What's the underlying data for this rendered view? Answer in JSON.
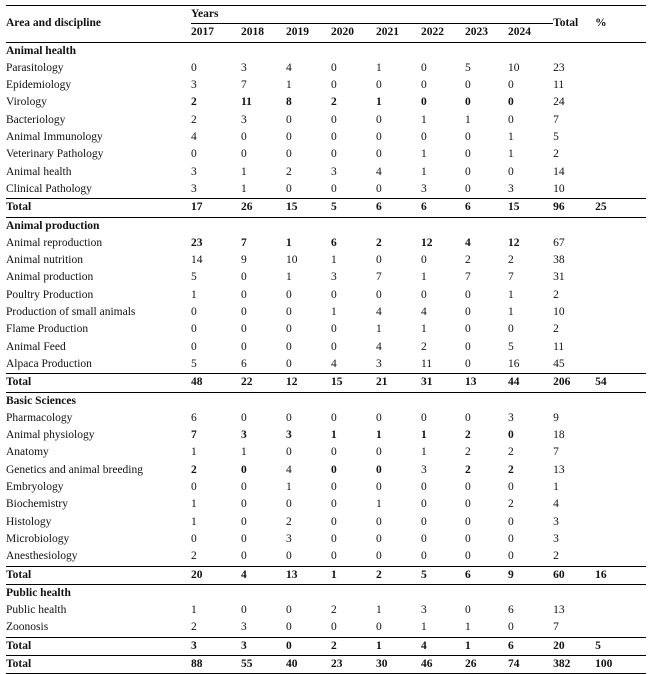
{
  "header": {
    "area_label": "Area and discipline",
    "years_label": "Years",
    "years": [
      "2017",
      "2018",
      "2019",
      "2020",
      "2021",
      "2022",
      "2023",
      "2024"
    ],
    "total_label": "Total",
    "percent_label": "%"
  },
  "sections": [
    {
      "title": "Animal health",
      "rows": [
        {
          "name": "Parasitology",
          "values": [
            0,
            3,
            4,
            0,
            1,
            0,
            5,
            10
          ],
          "total": 23,
          "bold_years": []
        },
        {
          "name": "Epidemiology",
          "values": [
            3,
            7,
            1,
            0,
            0,
            0,
            0,
            0
          ],
          "total": 11,
          "bold_years": []
        },
        {
          "name": "Virology",
          "values": [
            2,
            11,
            8,
            2,
            1,
            0,
            0,
            0
          ],
          "total": 24,
          "bold_years": [
            0,
            1,
            2,
            3,
            4,
            5,
            6,
            7
          ]
        },
        {
          "name": "Bacteriology",
          "values": [
            2,
            3,
            0,
            0,
            0,
            1,
            1,
            0
          ],
          "total": 7,
          "bold_years": []
        },
        {
          "name": "Animal Immunology",
          "values": [
            4,
            0,
            0,
            0,
            0,
            0,
            0,
            1
          ],
          "total": 5,
          "bold_years": []
        },
        {
          "name": "Veterinary Pathology",
          "values": [
            0,
            0,
            0,
            0,
            0,
            1,
            0,
            1
          ],
          "total": 2,
          "bold_years": []
        },
        {
          "name": "Animal health",
          "values": [
            3,
            1,
            2,
            3,
            4,
            1,
            0,
            0
          ],
          "total": 14,
          "bold_years": []
        },
        {
          "name": "Clinical Pathology",
          "values": [
            3,
            1,
            0,
            0,
            0,
            3,
            0,
            3
          ],
          "total": 10,
          "bold_years": []
        }
      ],
      "total": {
        "label": "Total",
        "values": [
          17,
          26,
          15,
          5,
          6,
          6,
          6,
          15
        ],
        "total": 96,
        "percent": 25
      }
    },
    {
      "title": "Animal production",
      "rows": [
        {
          "name": "Animal reproduction",
          "values": [
            23,
            7,
            1,
            6,
            2,
            12,
            4,
            12
          ],
          "total": 67,
          "bold_years": [
            0,
            1,
            2,
            3,
            4,
            5,
            6,
            7
          ]
        },
        {
          "name": "Animal nutrition",
          "values": [
            14,
            9,
            10,
            1,
            0,
            0,
            2,
            2
          ],
          "total": 38,
          "bold_years": []
        },
        {
          "name": "Animal production",
          "values": [
            5,
            0,
            1,
            3,
            7,
            1,
            7,
            7
          ],
          "total": 31,
          "bold_years": []
        },
        {
          "name": "Poultry Production",
          "values": [
            1,
            0,
            0,
            0,
            0,
            0,
            0,
            1
          ],
          "total": 2,
          "bold_years": []
        },
        {
          "name": "Production of small animals",
          "values": [
            0,
            0,
            0,
            1,
            4,
            4,
            0,
            1
          ],
          "total": 10,
          "bold_years": []
        },
        {
          "name": "Flame Production",
          "values": [
            0,
            0,
            0,
            0,
            1,
            1,
            0,
            0
          ],
          "total": 2,
          "bold_years": []
        },
        {
          "name": "Animal Feed",
          "values": [
            0,
            0,
            0,
            0,
            4,
            2,
            0,
            5
          ],
          "total": 11,
          "bold_years": []
        },
        {
          "name": "Alpaca Production",
          "values": [
            5,
            6,
            0,
            4,
            3,
            11,
            0,
            16
          ],
          "total": 45,
          "bold_years": []
        }
      ],
      "total": {
        "label": "Total",
        "values": [
          48,
          22,
          12,
          15,
          21,
          31,
          13,
          44
        ],
        "total": 206,
        "percent": 54
      }
    },
    {
      "title": "Basic Sciences",
      "rows": [
        {
          "name": "Pharmacology",
          "values": [
            6,
            0,
            0,
            0,
            0,
            0,
            0,
            3
          ],
          "total": 9,
          "bold_years": []
        },
        {
          "name": "Animal physiology",
          "values": [
            7,
            3,
            3,
            1,
            1,
            1,
            2,
            0
          ],
          "total": 18,
          "bold_years": [
            0,
            1,
            2,
            3,
            4,
            5,
            6,
            7
          ]
        },
        {
          "name": "Anatomy",
          "values": [
            1,
            1,
            0,
            0,
            0,
            1,
            2,
            2
          ],
          "total": 7,
          "bold_years": []
        },
        {
          "name": "Genetics and animal breeding",
          "values": [
            2,
            0,
            4,
            0,
            0,
            3,
            2,
            2
          ],
          "total": 13,
          "bold_years": [
            0,
            1,
            3,
            4,
            6,
            7
          ]
        },
        {
          "name": "Embryology",
          "values": [
            0,
            0,
            1,
            0,
            0,
            0,
            0,
            0
          ],
          "total": 1,
          "bold_years": []
        },
        {
          "name": "Biochemistry",
          "values": [
            1,
            0,
            0,
            0,
            1,
            0,
            0,
            2
          ],
          "total": 4,
          "bold_years": []
        },
        {
          "name": "Histology",
          "values": [
            1,
            0,
            2,
            0,
            0,
            0,
            0,
            0
          ],
          "total": 3,
          "bold_years": []
        },
        {
          "name": "Microbiology",
          "values": [
            0,
            0,
            3,
            0,
            0,
            0,
            0,
            0
          ],
          "total": 3,
          "bold_years": []
        },
        {
          "name": "Anesthesiology",
          "values": [
            2,
            0,
            0,
            0,
            0,
            0,
            0,
            0
          ],
          "total": 2,
          "bold_years": []
        }
      ],
      "total": {
        "label": "Total",
        "values": [
          20,
          4,
          13,
          1,
          2,
          5,
          6,
          9
        ],
        "total": 60,
        "percent": 16
      }
    },
    {
      "title": "Public health",
      "rows": [
        {
          "name": "Public health",
          "values": [
            1,
            0,
            0,
            2,
            1,
            3,
            0,
            6
          ],
          "total": 13,
          "bold_years": []
        },
        {
          "name": "Zoonosis",
          "values": [
            2,
            3,
            0,
            0,
            0,
            1,
            1,
            0
          ],
          "total": 7,
          "bold_years": []
        }
      ],
      "total": {
        "label": "Total",
        "values": [
          3,
          3,
          0,
          2,
          1,
          4,
          1,
          6
        ],
        "total": 20,
        "percent": 5
      }
    }
  ],
  "grand_total": {
    "label": "Total",
    "values": [
      88,
      55,
      40,
      23,
      30,
      46,
      26,
      74
    ],
    "total": 382,
    "percent": 100
  }
}
